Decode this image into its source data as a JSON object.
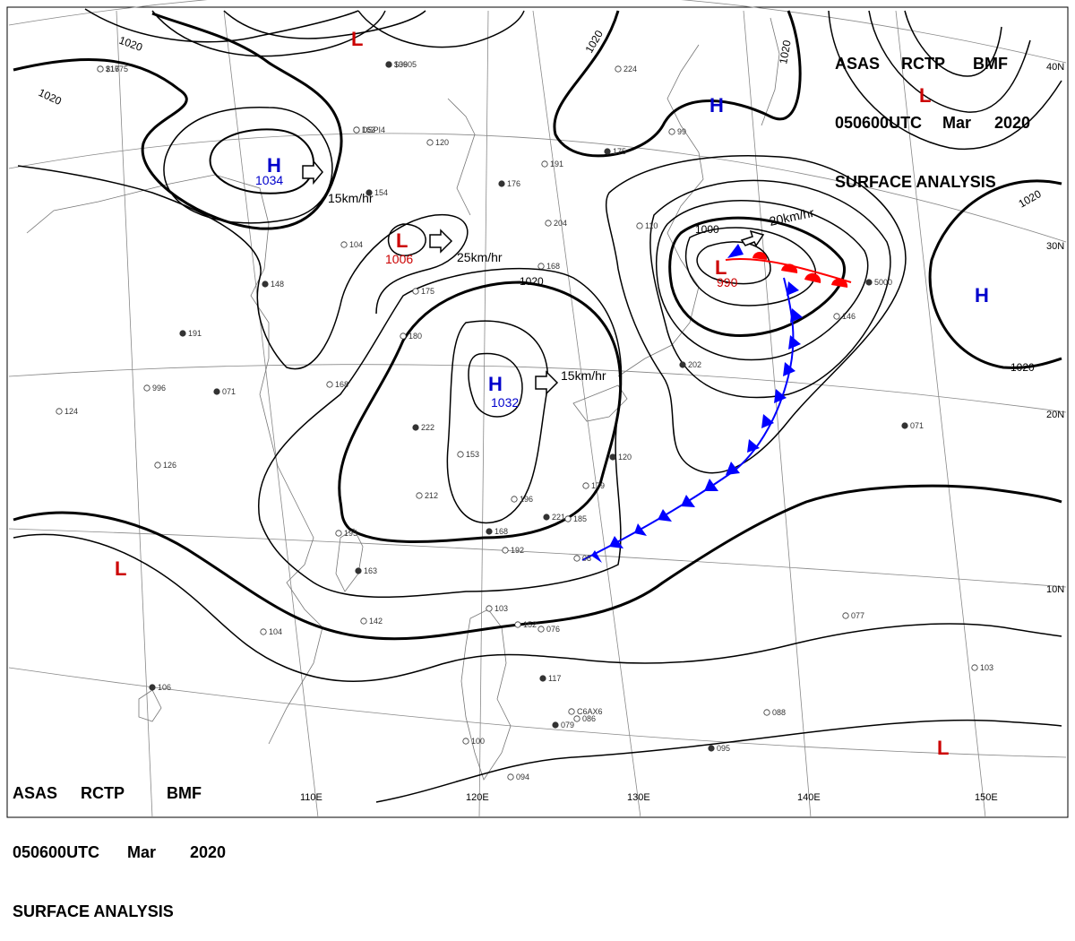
{
  "header_top_right": {
    "line1": [
      "ASAS",
      "RCTP",
      "BMF"
    ],
    "line2": [
      "050600UTC",
      "Mar",
      "2020"
    ],
    "line3": "SURFACE ANALYSIS"
  },
  "header_bottom_left": {
    "line1": [
      "ASAS",
      "RCTP",
      "BMF"
    ],
    "line2": [
      "050600UTC",
      "Mar",
      "2020"
    ],
    "line3": "SURFACE ANALYSIS"
  },
  "latitude_labels": [
    "10N",
    "20N",
    "30N",
    "40N"
  ],
  "longitude_labels": [
    "110E",
    "120E",
    "130E",
    "140E",
    "150E"
  ],
  "isobar_labels": [
    "1020",
    "1020",
    "1020",
    "1020",
    "1020",
    "1020",
    "1020",
    "1000"
  ],
  "pressure_centers": [
    {
      "type": "H",
      "pressure": "1034",
      "color": "#0000cc"
    },
    {
      "type": "H",
      "pressure": "1032",
      "color": "#0000cc"
    },
    {
      "type": "H",
      "pressure": "",
      "color": "#0000cc"
    },
    {
      "type": "H",
      "pressure": "",
      "color": "#0000cc"
    },
    {
      "type": "L",
      "pressure": "1006",
      "color": "#cc0000"
    },
    {
      "type": "L",
      "pressure": "990",
      "color": "#cc0000"
    },
    {
      "type": "L",
      "pressure": "",
      "color": "#cc0000"
    },
    {
      "type": "L",
      "pressure": "",
      "color": "#cc0000"
    },
    {
      "type": "L",
      "pressure": "",
      "color": "#cc0000"
    },
    {
      "type": "L",
      "pressure": "",
      "color": "#cc0000"
    }
  ],
  "movement_labels": [
    "15km/hr",
    "25km/hr",
    "15km/hr",
    "20km/hr"
  ],
  "station_samples": [
    "217",
    "109",
    "163",
    "154",
    "120",
    "191",
    "176",
    "204",
    "224",
    "175",
    "99",
    "104",
    "148",
    "175",
    "180",
    "191",
    "168",
    "996",
    "071",
    "124",
    "126",
    "222",
    "212",
    "195",
    "163",
    "142",
    "104",
    "106",
    "103",
    "076",
    "117",
    "100",
    "094",
    "079",
    "086",
    "088",
    "095",
    "077",
    "103",
    "071",
    "146",
    "110",
    "120",
    "179",
    "196",
    "221",
    "185",
    "192",
    "168",
    "153",
    "168",
    "202",
    "152",
    "08",
    "5000",
    "C6AX6",
    "$1675",
    "$3605",
    "DSPI4"
  ],
  "colors": {
    "high": "#0000cc",
    "low": "#cc0000",
    "cold_front": "#0000ff",
    "warm_front": "#ff0000",
    "isobar": "#000000",
    "grid": "#888888",
    "coast": "#777777"
  }
}
